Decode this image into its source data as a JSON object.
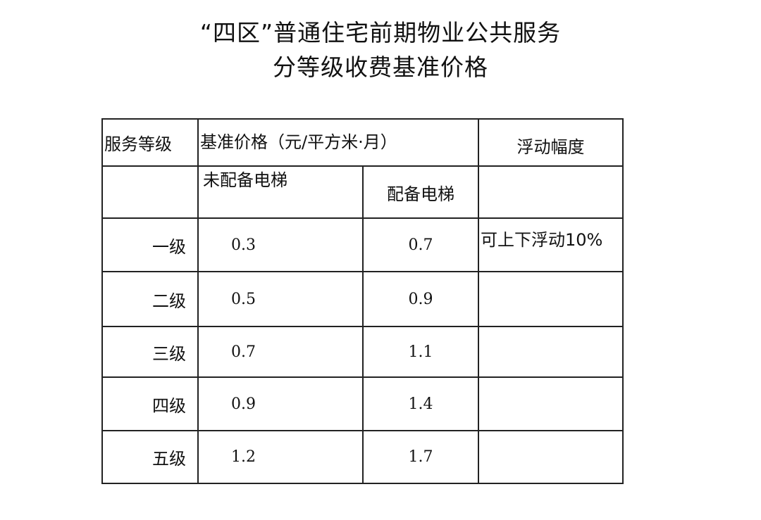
{
  "title": {
    "line1": "“四区”普通住宅前期物业公共服务",
    "line2": "分等级收费基准价格"
  },
  "table": {
    "headers": {
      "level": "服务等级",
      "base_price": "基准价格（元/平方米·月）",
      "float_range": "浮动幅度",
      "no_elevator": "未配备电梯",
      "with_elevator": "配备电梯"
    },
    "rows": [
      {
        "level": "一级",
        "no_elevator": "0.3",
        "with_elevator": "0.7",
        "float": "可上下浮动10%"
      },
      {
        "level": "二级",
        "no_elevator": "0.5",
        "with_elevator": "0.9",
        "float": ""
      },
      {
        "level": "三级",
        "no_elevator": "0.7",
        "with_elevator": "1.1",
        "float": ""
      },
      {
        "level": "四级",
        "no_elevator": "0.9",
        "with_elevator": "1.4",
        "float": ""
      },
      {
        "level": "五级",
        "no_elevator": "1.2",
        "with_elevator": "1.7",
        "float": ""
      }
    ]
  }
}
